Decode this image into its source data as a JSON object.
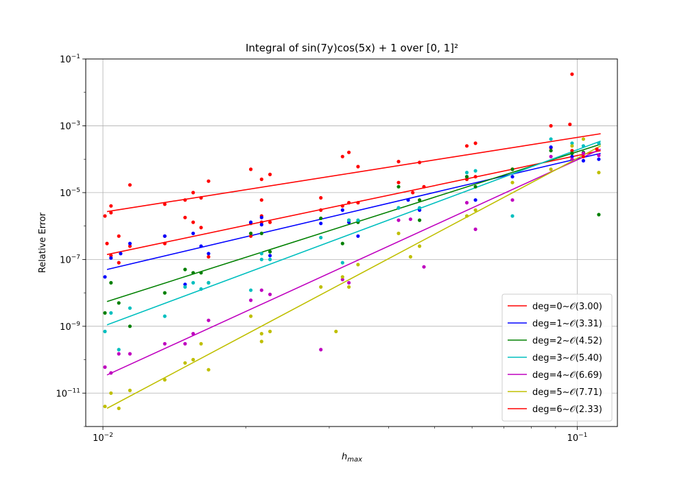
{
  "chart_data": {
    "type": "scatter",
    "title": "Integral of sin(7y)cos(5x) + 1 over [0, 1]²",
    "xlabel_main": "h",
    "xlabel_sub": "max",
    "ylabel": "Relative Error",
    "x_scale": "log",
    "y_scale": "log",
    "xlim": [
      0.0092,
      0.1215
    ],
    "ylim": [
      1e-12,
      0.1
    ],
    "x_ticks": [
      {
        "value": 0.01,
        "base": "10",
        "exp": "−2"
      },
      {
        "value": 0.1,
        "base": "10",
        "exp": "−1"
      }
    ],
    "y_ticks": [
      {
        "value": 1e-11,
        "base": "10",
        "exp": "−11"
      },
      {
        "value": 1e-09,
        "base": "10",
        "exp": "−9"
      },
      {
        "value": 1e-07,
        "base": "10",
        "exp": "−7"
      },
      {
        "value": 1e-05,
        "base": "10",
        "exp": "−5"
      },
      {
        "value": 0.001,
        "base": "10",
        "exp": "−3"
      },
      {
        "value": 0.1,
        "base": "10",
        "exp": "−1"
      }
    ],
    "grid": true,
    "legend_position": "lower-right",
    "series": [
      {
        "name": "deg=0~𝒪(3.00)",
        "color": "#ff0000",
        "fit": {
          "x0": 0.0102,
          "y0": 1.4e-07,
          "x1": 0.112,
          "y1": 0.00018
        },
        "points": [
          [
            0.0102,
            3e-07
          ],
          [
            0.0104,
            1.3e-07
          ],
          [
            0.0108,
            8e-08
          ],
          [
            0.0108,
            5e-07
          ],
          [
            0.0114,
            2.5e-07
          ],
          [
            0.0135,
            3e-07
          ],
          [
            0.0135,
            5e-07
          ],
          [
            0.0149,
            1.8e-06
          ],
          [
            0.0155,
            1.3e-06
          ],
          [
            0.0161,
            9e-07
          ],
          [
            0.0167,
            1.2e-07
          ],
          [
            0.0205,
            1.2e-06
          ],
          [
            0.0205,
            5e-07
          ],
          [
            0.0216,
            2e-06
          ],
          [
            0.0216,
            1.3e-06
          ],
          [
            0.0225,
            1.3e-06
          ],
          [
            0.0288,
            3e-06
          ],
          [
            0.032,
            4e-06
          ],
          [
            0.033,
            5e-06
          ],
          [
            0.0345,
            5e-06
          ],
          [
            0.042,
            2e-05
          ],
          [
            0.045,
            1e-05
          ],
          [
            0.0475,
            1.5e-05
          ],
          [
            0.0585,
            2.5e-05
          ],
          [
            0.061,
            3e-05
          ],
          [
            0.073,
            5e-05
          ],
          [
            0.088,
            0.00022
          ],
          [
            0.0975,
            0.00018
          ],
          [
            0.103,
            0.00012
          ],
          [
            0.11,
            0.0002
          ]
        ]
      },
      {
        "name": "deg=1~𝒪(3.31)",
        "color": "#0000ff",
        "fit": {
          "x0": 0.0102,
          "y0": 5e-08,
          "x1": 0.112,
          "y1": 0.00015
        },
        "points": [
          [
            0.0101,
            3e-08
          ],
          [
            0.0104,
            1.1e-07
          ],
          [
            0.0109,
            1.5e-07
          ],
          [
            0.0114,
            3e-07
          ],
          [
            0.0135,
            5e-07
          ],
          [
            0.0149,
            1.8e-08
          ],
          [
            0.0155,
            6e-07
          ],
          [
            0.0161,
            2.5e-07
          ],
          [
            0.0167,
            1.5e-07
          ],
          [
            0.0205,
            1.3e-06
          ],
          [
            0.0216,
            1.8e-06
          ],
          [
            0.0216,
            1.1e-06
          ],
          [
            0.0225,
            1.3e-07
          ],
          [
            0.0288,
            1.2e-06
          ],
          [
            0.032,
            3e-06
          ],
          [
            0.033,
            1.3e-06
          ],
          [
            0.0345,
            5e-07
          ],
          [
            0.042,
            3.5e-06
          ],
          [
            0.044,
            6e-06
          ],
          [
            0.0465,
            3e-06
          ],
          [
            0.0585,
            3e-05
          ],
          [
            0.061,
            6e-06
          ],
          [
            0.073,
            3e-05
          ],
          [
            0.088,
            0.00023
          ],
          [
            0.0975,
            0.00012
          ],
          [
            0.103,
            9e-05
          ],
          [
            0.111,
            0.0001
          ]
        ]
      },
      {
        "name": "deg=2~𝒪(4.52)",
        "color": "#008000",
        "fit": {
          "x0": 0.0102,
          "y0": 5.5e-09,
          "x1": 0.112,
          "y1": 0.00028
        },
        "points": [
          [
            0.0101,
            2.5e-09
          ],
          [
            0.0104,
            2e-08
          ],
          [
            0.0108,
            5e-09
          ],
          [
            0.0114,
            1e-09
          ],
          [
            0.0135,
            1e-08
          ],
          [
            0.0149,
            5e-08
          ],
          [
            0.0155,
            4e-08
          ],
          [
            0.0161,
            4e-08
          ],
          [
            0.0167,
            2e-08
          ],
          [
            0.0205,
            6e-07
          ],
          [
            0.0216,
            6e-07
          ],
          [
            0.0225,
            1.7e-07
          ],
          [
            0.0288,
            1.7e-06
          ],
          [
            0.032,
            3e-07
          ],
          [
            0.033,
            1.5e-06
          ],
          [
            0.0345,
            1.3e-06
          ],
          [
            0.042,
            1.5e-05
          ],
          [
            0.0465,
            1.5e-06
          ],
          [
            0.0465,
            6e-06
          ],
          [
            0.0585,
            3e-05
          ],
          [
            0.061,
            1.5e-05
          ],
          [
            0.073,
            5e-05
          ],
          [
            0.088,
            0.00018
          ],
          [
            0.0975,
            0.00015
          ],
          [
            0.103,
            0.00016
          ],
          [
            0.111,
            2.2e-06
          ]
        ]
      },
      {
        "name": "deg=3~𝒪(5.40)",
        "color": "#00bfbf",
        "fit": {
          "x0": 0.0102,
          "y0": 1.1e-09,
          "x1": 0.112,
          "y1": 0.00035
        },
        "points": [
          [
            0.0101,
            7e-10
          ],
          [
            0.0104,
            2.5e-09
          ],
          [
            0.0108,
            2e-10
          ],
          [
            0.0114,
            3.5e-09
          ],
          [
            0.0135,
            2e-09
          ],
          [
            0.0149,
            1.5e-08
          ],
          [
            0.0155,
            2e-08
          ],
          [
            0.0161,
            1.3e-08
          ],
          [
            0.0167,
            2e-08
          ],
          [
            0.0205,
            1.2e-08
          ],
          [
            0.0216,
            1e-07
          ],
          [
            0.0216,
            1.5e-07
          ],
          [
            0.0225,
            1e-07
          ],
          [
            0.0288,
            4.5e-07
          ],
          [
            0.032,
            8e-08
          ],
          [
            0.033,
            1.5e-06
          ],
          [
            0.0345,
            1.5e-06
          ],
          [
            0.042,
            3.5e-06
          ],
          [
            0.0465,
            3.5e-06
          ],
          [
            0.0585,
            4e-05
          ],
          [
            0.061,
            4.5e-05
          ],
          [
            0.073,
            2e-06
          ],
          [
            0.088,
            0.0004
          ],
          [
            0.0975,
            0.0003
          ],
          [
            0.103,
            0.00025
          ],
          [
            0.111,
            0.0003
          ]
        ]
      },
      {
        "name": "deg=4~𝒪(6.69)",
        "color": "#bf00bf",
        "fit": {
          "x0": 0.0102,
          "y0": 3.5e-11,
          "x1": 0.112,
          "y1": 0.0002
        },
        "points": [
          [
            0.0101,
            6e-11
          ],
          [
            0.0104,
            4e-11
          ],
          [
            0.0108,
            1.5e-10
          ],
          [
            0.0114,
            1.5e-10
          ],
          [
            0.0135,
            3e-10
          ],
          [
            0.0149,
            3e-10
          ],
          [
            0.0155,
            6e-10
          ],
          [
            0.0167,
            1.5e-09
          ],
          [
            0.0205,
            6e-09
          ],
          [
            0.0216,
            1.2e-08
          ],
          [
            0.0225,
            9e-09
          ],
          [
            0.0288,
            2e-10
          ],
          [
            0.032,
            2.5e-08
          ],
          [
            0.033,
            2e-08
          ],
          [
            0.042,
            1.5e-06
          ],
          [
            0.0445,
            1.6e-06
          ],
          [
            0.0475,
            6e-08
          ],
          [
            0.0585,
            5e-06
          ],
          [
            0.061,
            8e-07
          ],
          [
            0.073,
            6e-06
          ],
          [
            0.088,
            0.00012
          ],
          [
            0.0975,
            0.0001
          ],
          [
            0.103,
            0.00015
          ],
          [
            0.111,
            0.00013
          ]
        ]
      },
      {
        "name": "deg=5~𝒪(7.71)",
        "color": "#bfbf00",
        "fit": {
          "x0": 0.0102,
          "y0": 3.5e-12,
          "x1": 0.112,
          "y1": 0.00025
        },
        "points": [
          [
            0.0101,
            4e-12
          ],
          [
            0.0104,
            1e-11
          ],
          [
            0.0108,
            3.5e-12
          ],
          [
            0.0114,
            1.2e-11
          ],
          [
            0.0135,
            2.5e-11
          ],
          [
            0.0149,
            8e-11
          ],
          [
            0.0155,
            1e-10
          ],
          [
            0.0161,
            3e-10
          ],
          [
            0.0167,
            5e-11
          ],
          [
            0.0205,
            2e-09
          ],
          [
            0.0216,
            6e-10
          ],
          [
            0.0216,
            3.5e-10
          ],
          [
            0.0225,
            7e-10
          ],
          [
            0.0288,
            1.5e-08
          ],
          [
            0.031,
            7e-10
          ],
          [
            0.032,
            3e-08
          ],
          [
            0.033,
            1.5e-08
          ],
          [
            0.0345,
            7e-08
          ],
          [
            0.042,
            6e-07
          ],
          [
            0.0445,
            1.2e-07
          ],
          [
            0.0465,
            2.5e-07
          ],
          [
            0.0585,
            2e-06
          ],
          [
            0.061,
            3e-06
          ],
          [
            0.073,
            2e-05
          ],
          [
            0.088,
            5e-05
          ],
          [
            0.0975,
            0.00025
          ],
          [
            0.103,
            0.0004
          ],
          [
            0.111,
            4e-05
          ]
        ]
      },
      {
        "name": "deg=6~𝒪(2.33)",
        "color": "#ff0000",
        "fit": {
          "x0": 0.0102,
          "y0": 2.7e-06,
          "x1": 0.112,
          "y1": 0.00058
        },
        "points": [
          [
            0.0101,
            2e-06
          ],
          [
            0.0104,
            4e-06
          ],
          [
            0.0104,
            2.5e-06
          ],
          [
            0.0114,
            1.7e-05
          ],
          [
            0.0135,
            4.5e-06
          ],
          [
            0.0149,
            6e-06
          ],
          [
            0.0155,
            1e-05
          ],
          [
            0.0161,
            7e-06
          ],
          [
            0.0167,
            2.2e-05
          ],
          [
            0.0205,
            5e-05
          ],
          [
            0.0216,
            6e-06
          ],
          [
            0.0216,
            2.5e-05
          ],
          [
            0.0225,
            3.5e-05
          ],
          [
            0.0288,
            7e-06
          ],
          [
            0.032,
            0.00012
          ],
          [
            0.033,
            0.00016
          ],
          [
            0.0345,
            6e-05
          ],
          [
            0.042,
            8.5e-05
          ],
          [
            0.0465,
            8e-05
          ],
          [
            0.0585,
            0.00025
          ],
          [
            0.061,
            0.0003
          ],
          [
            0.088,
            0.001
          ],
          [
            0.0965,
            0.0011
          ],
          [
            0.0975,
            0.035
          ]
        ]
      }
    ]
  }
}
